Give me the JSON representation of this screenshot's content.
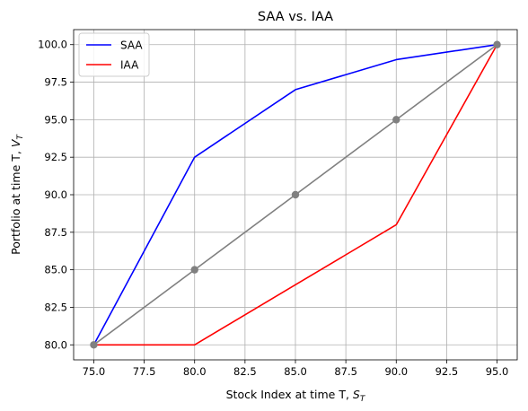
{
  "chart_data": {
    "type": "line",
    "title": "SAA vs. IAA",
    "xlabel": "Stock Index at time T, ",
    "xlabel_symbol": "S",
    "xlabel_sub": "T",
    "ylabel": "Portfolio at time T, ",
    "ylabel_symbol": "V",
    "ylabel_sub": "T",
    "xlim": [
      74.0,
      96.0
    ],
    "ylim": [
      79.0,
      101.0
    ],
    "xticks": [
      "75.0",
      "77.5",
      "80.0",
      "82.5",
      "85.0",
      "87.5",
      "90.0",
      "92.5",
      "95.0"
    ],
    "yticks": [
      "80.0",
      "82.5",
      "85.0",
      "87.5",
      "90.0",
      "92.5",
      "95.0",
      "97.5",
      "100.0"
    ],
    "grid": true,
    "legend_position": "top-left",
    "series": [
      {
        "name": "SAA",
        "color": "#0000ff",
        "x": [
          75,
          80,
          85,
          90,
          95
        ],
        "y": [
          80.0,
          92.5,
          97.0,
          99.0,
          100.0
        ]
      },
      {
        "name": "IAA",
        "color": "#ff0000",
        "x": [
          75,
          80,
          85,
          90,
          95
        ],
        "y": [
          80.0,
          80.0,
          84.0,
          88.0,
          100.0
        ]
      }
    ],
    "reference_line": {
      "color": "#808080",
      "marker": "circle",
      "x": [
        75,
        80,
        85,
        90,
        95
      ],
      "y": [
        80.0,
        85.0,
        90.0,
        95.0,
        100.0
      ]
    }
  }
}
